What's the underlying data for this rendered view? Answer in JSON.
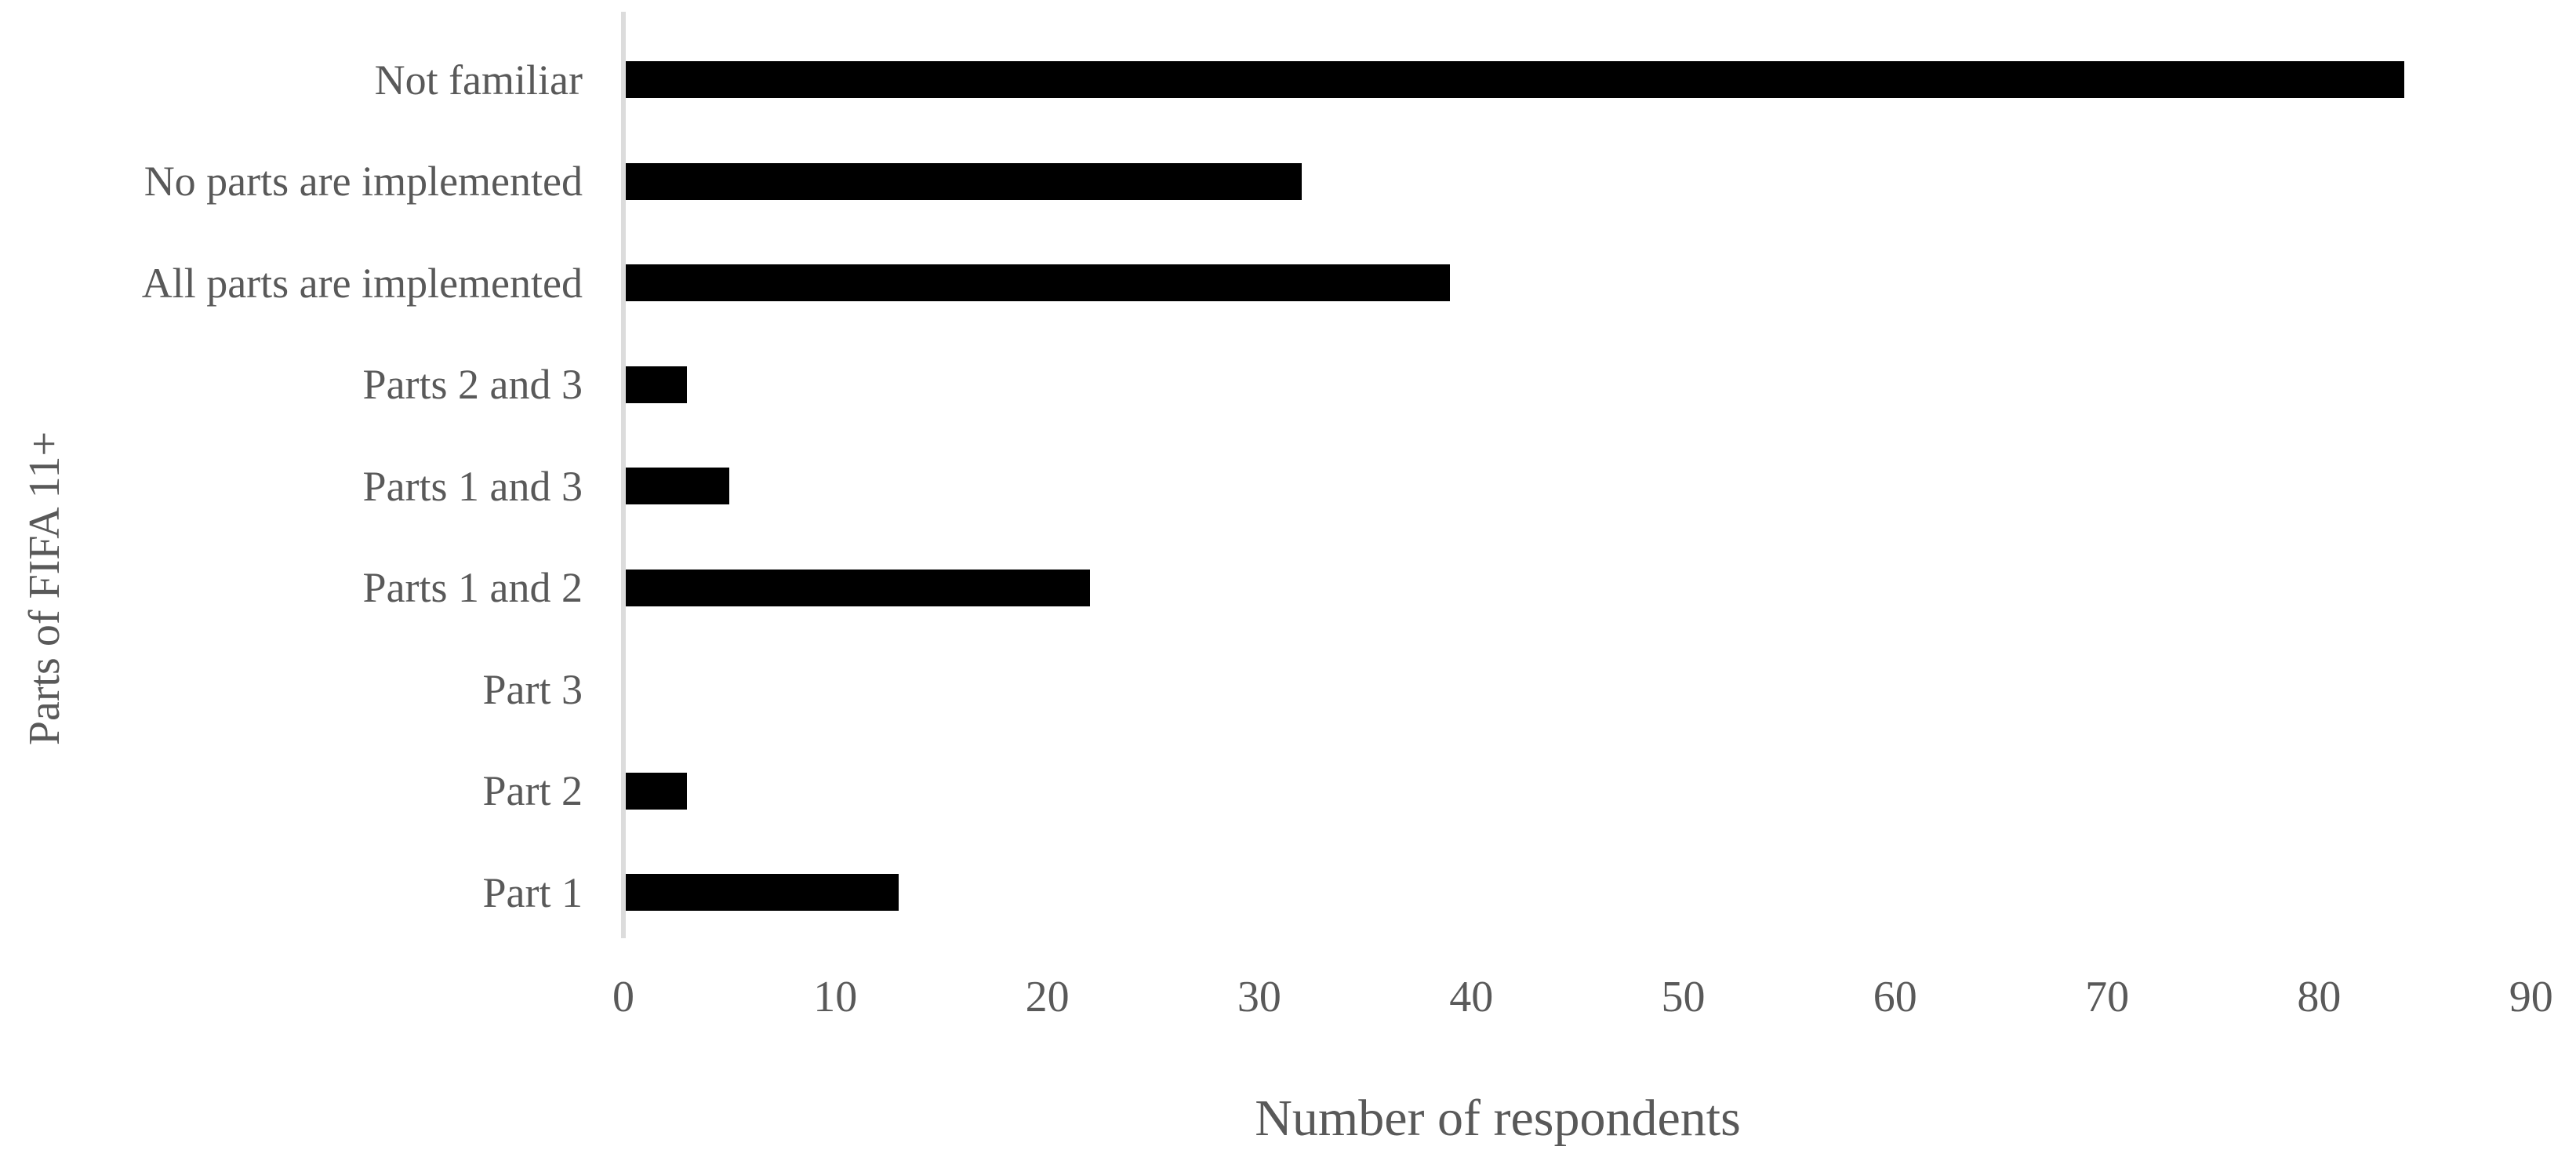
{
  "chart_data": {
    "type": "bar",
    "orientation": "horizontal",
    "title": "",
    "categories": [
      "Not familiar",
      "No parts are implemented",
      "All parts are implemented",
      "Parts 2 and 3",
      "Parts 1 and 3",
      "Parts 1 and 2",
      "Part 3",
      "Part 2",
      "Part 1"
    ],
    "values": [
      84,
      32,
      39,
      3,
      5,
      22,
      0,
      3,
      13
    ],
    "xlabel": "Number of respondents",
    "ylabel": "Parts of FIFA 11+",
    "xlim": [
      0,
      90
    ],
    "xticks": [
      0,
      10,
      20,
      30,
      40,
      50,
      60,
      70,
      80,
      90
    ],
    "grid": false,
    "legend": false,
    "bar_color": "#000000",
    "label_color": "#595959",
    "axis_line_color": "#DCDCDC",
    "background_color": "#FFFFFF"
  }
}
